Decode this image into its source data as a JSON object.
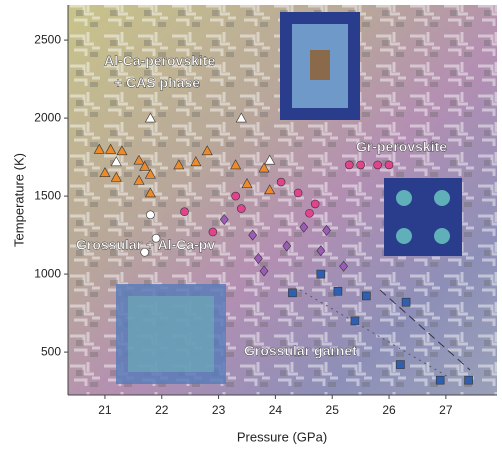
{
  "chart_data": {
    "type": "scatter",
    "x_label": "Pressure (GPa)",
    "y_label": "Temperature (K)",
    "xlim": [
      20.35,
      27.9
    ],
    "ylim": [
      225,
      2725
    ],
    "xticks": [
      21,
      22,
      23,
      24,
      25,
      26,
      27
    ],
    "yticks": [
      500,
      1000,
      1500,
      2000,
      2500
    ],
    "annotations": [
      "Al-Ca-perovskite",
      "+ CAS phase",
      "Gr-perovskite",
      "Grossular + Al-Ca-pv",
      "Grossular garnet"
    ],
    "series": [
      {
        "marker": "triangle",
        "color": "#ec8a2c",
        "x": [
          20.9,
          21.1,
          21.3,
          21.0,
          21.2,
          21.6,
          21.7,
          21.8,
          21.6,
          21.8,
          22.3,
          22.6,
          22.8,
          23.3,
          23.5,
          23.8,
          23.9
        ],
        "values": [
          1800,
          1800,
          1790,
          1650,
          1620,
          1730,
          1690,
          1640,
          1600,
          1520,
          1700,
          1720,
          1790,
          1700,
          1580,
          1680,
          1540
        ]
      },
      {
        "marker": "triangle",
        "color": "#ffffff",
        "x": [
          21.8,
          21.2,
          23.4,
          23.9
        ],
        "values": [
          2000,
          1720,
          2000,
          1730
        ]
      },
      {
        "marker": "circle",
        "color": "#ffffff",
        "x": [
          21.8,
          21.9,
          21.7
        ],
        "values": [
          1380,
          1230,
          1140
        ]
      },
      {
        "marker": "circle",
        "color": "#e2438c",
        "x": [
          25.3,
          25.5,
          25.8,
          26.0,
          24.1,
          24.4,
          24.7,
          23.3,
          22.4,
          23.4,
          22.9,
          24.6
        ],
        "values": [
          1700,
          1700,
          1700,
          1700,
          1590,
          1520,
          1450,
          1500,
          1400,
          1420,
          1270,
          1390
        ]
      },
      {
        "marker": "diamond",
        "color": "#9c5bb8",
        "x": [
          23.1,
          23.6,
          23.7,
          23.8,
          24.5,
          24.8,
          24.9,
          25.2,
          24.2
        ],
        "values": [
          1350,
          1250,
          1100,
          1020,
          1300,
          1150,
          1280,
          1050,
          1180
        ]
      },
      {
        "marker": "square",
        "color": "#2f5fb0",
        "x": [
          24.8,
          24.3,
          25.1,
          25.6,
          26.3,
          25.4,
          26.9,
          27.4,
          26.2
        ],
        "values": [
          1000,
          880,
          890,
          860,
          820,
          700,
          320,
          320,
          420
        ]
      }
    ]
  }
}
